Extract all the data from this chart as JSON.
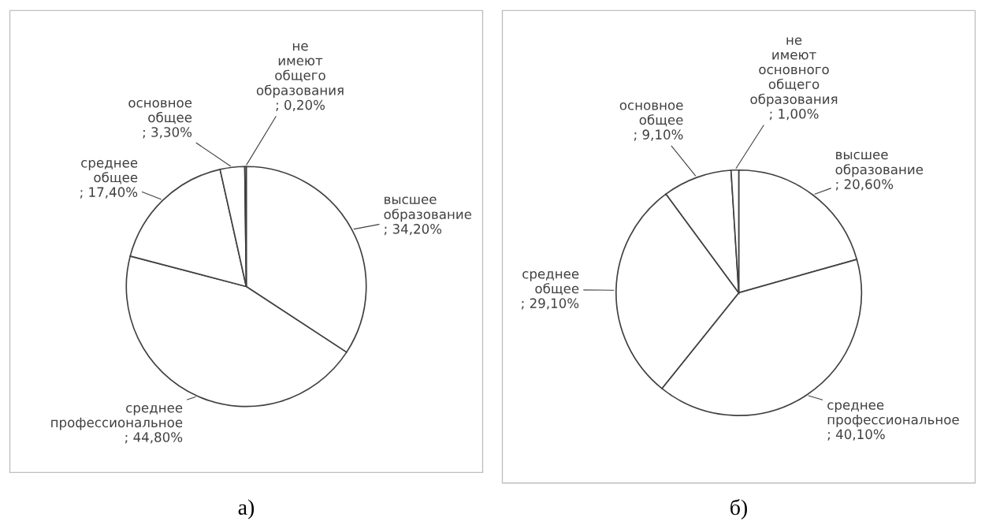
{
  "chart_data": [
    {
      "type": "pie",
      "title": "а)",
      "categories": [
        "высшее образование",
        "среднее профессиональное",
        "среднее общее",
        "основное общее",
        "не имеют общего образования"
      ],
      "values": [
        34.2,
        44.8,
        17.4,
        3.3,
        0.2
      ],
      "value_labels": [
        "; 34,20%",
        "; 44,80%",
        "; 17,40%",
        "; 3,30%",
        "; 0,20%"
      ],
      "colors": [
        "#ffffff",
        "#ffffff",
        "#ffffff",
        "#ffffff",
        "#ffffff"
      ]
    },
    {
      "type": "pie",
      "title": "б)",
      "categories": [
        "высшее образование",
        "среднее профессиональное",
        "среднее общее",
        "основное общее",
        "не имеют основного общего образования"
      ],
      "values": [
        20.6,
        40.1,
        29.1,
        9.1,
        1.0
      ],
      "value_labels": [
        "; 20,60%",
        "; 40,10%",
        "; 29,10%",
        "; 9,10%",
        "; 1,00%"
      ],
      "colors": [
        "#ffffff",
        "#ffffff",
        "#ffffff",
        "#ffffff",
        "#ffffff"
      ]
    }
  ]
}
